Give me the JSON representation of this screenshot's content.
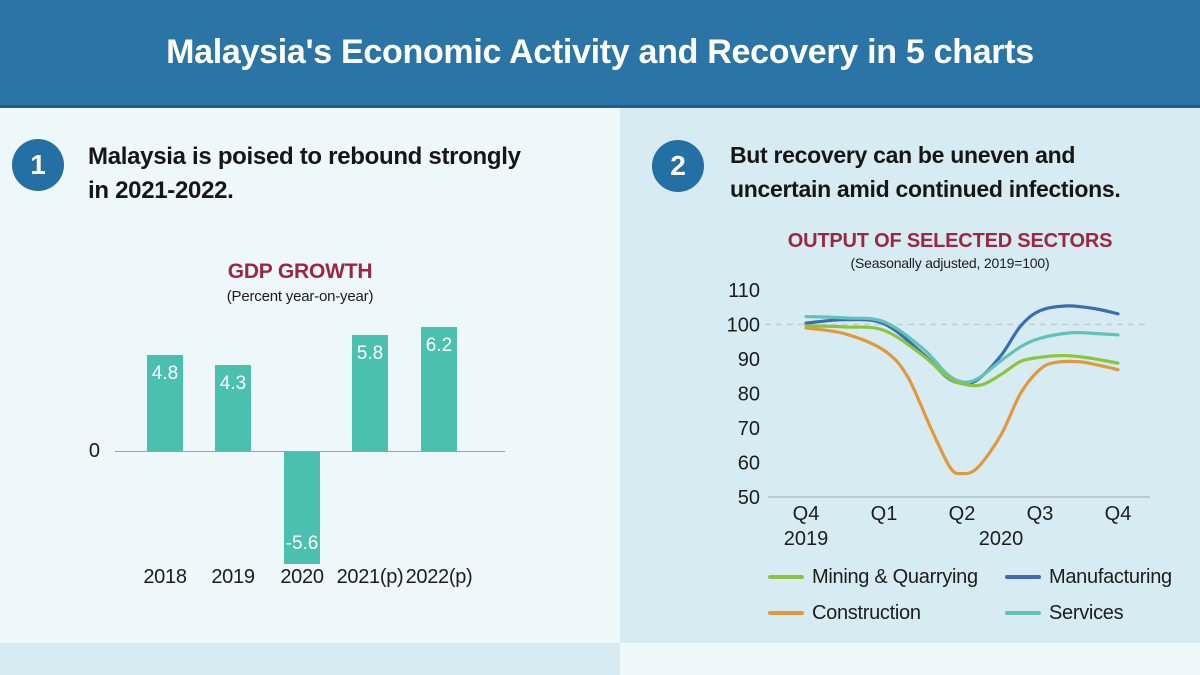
{
  "header": {
    "title": "Malaysia's Economic Activity and Recovery in 5 charts",
    "background": "#2a74a6",
    "text_color": "#ffffff"
  },
  "panels": [
    {
      "number": "1",
      "headline_lines": [
        "Malaysia is poised to rebound strongly",
        "in 2021-2022."
      ],
      "background": "#eef7f9"
    },
    {
      "number": "2",
      "headline_lines": [
        "But recovery can be uneven and",
        "uncertain amid continued infections."
      ],
      "background": "#d7ecf2"
    }
  ],
  "colors": {
    "badge_blue": "#2470a4",
    "chart_title_maroon": "#9c2742",
    "text_dark": "#1d1d1b",
    "bar_teal": "#4cc0ae",
    "zero_axis_gray": "#9aa3a6",
    "dashed_gridline_gray": "#c6ced1",
    "x_axis_gray": "#b6bec1"
  },
  "chart_data": [
    {
      "type": "bar",
      "title": "GDP GROWTH",
      "subtitle": "(Percent year-on-year)",
      "categories": [
        "2018",
        "2019",
        "2020",
        "2021(p)",
        "2022(p)"
      ],
      "values": [
        4.8,
        4.3,
        -5.6,
        5.8,
        6.2
      ],
      "data_labels": [
        "4.8",
        "4.3",
        "-5.6",
        "5.8",
        "6.2"
      ],
      "zero_label": "0",
      "bar_color": "#4cc0ae",
      "data_label_color": "#ffffff",
      "data_label_position": "inside",
      "ylim": [
        -6.5,
        7
      ],
      "grid": false
    },
    {
      "type": "line",
      "title": "OUTPUT OF SELECTED SECTORS",
      "subtitle": "(Seasonally adjusted, 2019=100)",
      "x_axis": {
        "ticks": [
          "Q4",
          "Q1",
          "Q2",
          "Q3",
          "Q4"
        ],
        "year_labels": [
          {
            "label": "2019",
            "under_tick": 0
          },
          {
            "label": "2020",
            "under_ticks": [
              1,
              4
            ]
          }
        ],
        "unit": "quarter_index_from_Q4_2019"
      },
      "y_axis": {
        "ticks": [
          110,
          100,
          90,
          80,
          70,
          60,
          50
        ],
        "range": [
          50,
          110
        ],
        "reference_line": 100
      },
      "legend_position": "bottom",
      "series": [
        {
          "name": "Mining & Quarrying",
          "color": "#8bc53f",
          "points": [
            [
              0,
              99.6
            ],
            [
              0.5,
              99.3
            ],
            [
              1,
              98.3
            ],
            [
              1.5,
              91
            ],
            [
              1.8,
              85
            ],
            [
              2,
              82.8
            ],
            [
              2.25,
              82.5
            ],
            [
              2.5,
              85.5
            ],
            [
              2.75,
              89.3
            ],
            [
              3,
              90.5
            ],
            [
              3.3,
              91
            ],
            [
              3.6,
              90.4
            ],
            [
              4,
              88.8
            ]
          ]
        },
        {
          "name": "Manufacturing",
          "color": "#3c6cb4",
          "points": [
            [
              0,
              100.4
            ],
            [
              0.5,
              101.4
            ],
            [
              1,
              100.2
            ],
            [
              1.5,
              91.5
            ],
            [
              1.8,
              84.8
            ],
            [
              2,
              83
            ],
            [
              2.2,
              84
            ],
            [
              2.5,
              91
            ],
            [
              2.75,
              99.5
            ],
            [
              3,
              104
            ],
            [
              3.35,
              105.4
            ],
            [
              3.7,
              104.6
            ],
            [
              4,
              103.1
            ]
          ]
        },
        {
          "name": "Construction",
          "color": "#e0993c",
          "points": [
            [
              0,
              99
            ],
            [
              0.5,
              97.3
            ],
            [
              1,
              92.5
            ],
            [
              1.3,
              85
            ],
            [
              1.6,
              70
            ],
            [
              1.85,
              58.5
            ],
            [
              2,
              56.8
            ],
            [
              2.2,
              58.5
            ],
            [
              2.5,
              68
            ],
            [
              2.75,
              80
            ],
            [
              3,
              87
            ],
            [
              3.2,
              89
            ],
            [
              3.5,
              89.2
            ],
            [
              3.75,
              88.2
            ],
            [
              4,
              86.9
            ]
          ]
        },
        {
          "name": "Services",
          "color": "#63c2b8",
          "points": [
            [
              0,
              102.3
            ],
            [
              0.5,
              101.9
            ],
            [
              1,
              100.8
            ],
            [
              1.5,
              93
            ],
            [
              1.8,
              85.8
            ],
            [
              2,
              83.4
            ],
            [
              2.2,
              84.3
            ],
            [
              2.5,
              89.5
            ],
            [
              2.75,
              93.5
            ],
            [
              3,
              96
            ],
            [
              3.4,
              97.6
            ],
            [
              3.7,
              97.4
            ],
            [
              4,
              97
            ]
          ]
        }
      ],
      "draw_order": [
        1,
        3,
        0,
        2
      ]
    }
  ]
}
